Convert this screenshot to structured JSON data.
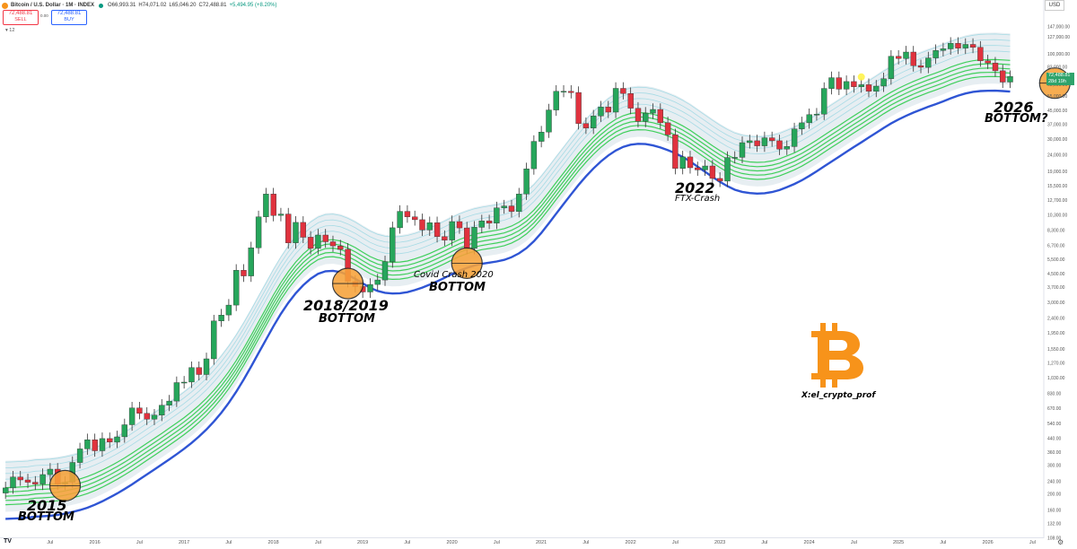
{
  "header": {
    "symbol": "Bitcoin / U.S. Dollar · 1M · INDEX",
    "open": "O66,993.31",
    "high": "H74,071.02",
    "low": "L65,046.20",
    "close": "C72,488.81",
    "change": "+5,494.95 (+8.20%)",
    "sell_price": "72,488.81",
    "sell_label": "SELL",
    "spread": "0.00",
    "buy_price": "72,488.81",
    "buy_label": "BUY",
    "indicator": "12"
  },
  "currency_button": "USD",
  "price_tag": {
    "price": "72,488.81",
    "countdown": "28d 19h"
  },
  "annotations": {
    "a2015_year": "2015",
    "a2015_label": "BOTTOM",
    "a2018_year": "2018/2019",
    "a2018_label": "BOTTOM",
    "covid_title": "Covid Crash 2020",
    "covid_label": "BOTTOM",
    "a2022_year": "2022",
    "a2022_label": "FTX-Crash",
    "a2026_year": "2026",
    "a2026_label": "BOTTOM?",
    "handle": "X:el_crypto_prof"
  },
  "logo": "bitcoin-logo",
  "colors": {
    "up": "#26a65b",
    "down": "#e0323e",
    "ribbon": "#3fcf5b",
    "ma": "#2f55d4",
    "circle": "#f7a23a",
    "bitcoin": "#f7931a"
  },
  "chart_data": {
    "type": "candlestick",
    "title": "Bitcoin / U.S. Dollar · 1M · INDEX",
    "scale": "log",
    "grid": false,
    "y_ticks": [
      147000,
      127000,
      100000,
      83000,
      65000,
      55000,
      45000,
      37000,
      30000,
      24000,
      19000,
      15500,
      12700,
      10300,
      8300,
      6700,
      5500,
      4500,
      3700,
      3000,
      2400,
      1950,
      1550,
      1270,
      1030,
      830,
      670,
      540,
      440,
      360,
      300,
      240,
      200,
      160,
      132,
      108
    ],
    "y_tick_labels": [
      "147,000.00",
      "127,000.00",
      "100,000.00",
      "83,000.00",
      "65,000.00",
      "55,000.00",
      "45,000.00",
      "37,000.00",
      "30,000.00",
      "24,000.00",
      "19,000.00",
      "15,500.00",
      "12,700.00",
      "10,300.00",
      "8,300.00",
      "6,700.00",
      "5,500.00",
      "4,500.00",
      "3,700.00",
      "3,000.00",
      "2,400.00",
      "1,950.00",
      "1,550.00",
      "1,270.00",
      "1,030.00",
      "830.00",
      "670.00",
      "540.00",
      "440.00",
      "360.00",
      "300.00",
      "240.00",
      "200.00",
      "160.00",
      "132.00",
      "108.00"
    ],
    "x_ticks": [
      "2015-07",
      "2016-01",
      "2016-07",
      "2017-01",
      "2017-07",
      "2018-01",
      "2018-07",
      "2019-01",
      "2019-07",
      "2020-01",
      "2020-07",
      "2021-01",
      "2021-07",
      "2022-01",
      "2022-07",
      "2023-01",
      "2023-07",
      "2024-01",
      "2024-07",
      "2025-01",
      "2025-07",
      "2026-01",
      "2026-07"
    ],
    "x_tick_labels": [
      "Jul",
      "2016",
      "Jul",
      "2017",
      "Jul",
      "2018",
      "Jul",
      "2019",
      "Jul",
      "2020",
      "Jul",
      "2021",
      "Jul",
      "2022",
      "Jul",
      "2023",
      "Jul",
      "2024",
      "Jul",
      "2025",
      "Jul",
      "2026",
      "Jul"
    ],
    "x_start": "2015-01",
    "closes": [
      218,
      254,
      244,
      236,
      230,
      263,
      284,
      230,
      236,
      312,
      378,
      430,
      368,
      437,
      416,
      448,
      531,
      673,
      624,
      575,
      608,
      700,
      742,
      963,
      970,
      1190,
      1080,
      1348,
      2300,
      2500,
      2875,
      4700,
      4340,
      6450,
      10000,
      13800,
      10200,
      10400,
      6930,
      9250,
      7500,
      6400,
      7730,
      7030,
      6630,
      6320,
      4020,
      3740,
      3460,
      3850,
      4100,
      5300,
      8570,
      10800,
      10000,
      9600,
      8300,
      9200,
      7570,
      7200,
      9350,
      8550,
      6400,
      8630,
      9450,
      9140,
      11350,
      11650,
      10780,
      13800,
      19700,
      29000,
      33100,
      45200,
      58800,
      58800,
      57800,
      37300,
      35000,
      41500,
      47100,
      43800,
      61300,
      57000,
      46300,
      38500,
      43200,
      45500,
      37700,
      31800,
      19800,
      23300,
      20000,
      19400,
      20500,
      17200,
      16550,
      23100,
      23150,
      28500,
      29250,
      27200,
      30500,
      29250,
      26000,
      26970,
      34600,
      37700,
      42300,
      42600,
      61200,
      71300,
      60600,
      67500,
      62700,
      64600,
      58900,
      63300,
      70200,
      96400,
      93400,
      102400,
      84400,
      82500,
      94200,
      104600,
      107100,
      115800,
      108200,
      114000,
      109500,
      90400,
      87600,
      78600,
      66990,
      72490
    ],
    "series": [
      {
        "name": "ribbon",
        "values": []
      },
      {
        "name": "moving average",
        "values": []
      }
    ]
  }
}
